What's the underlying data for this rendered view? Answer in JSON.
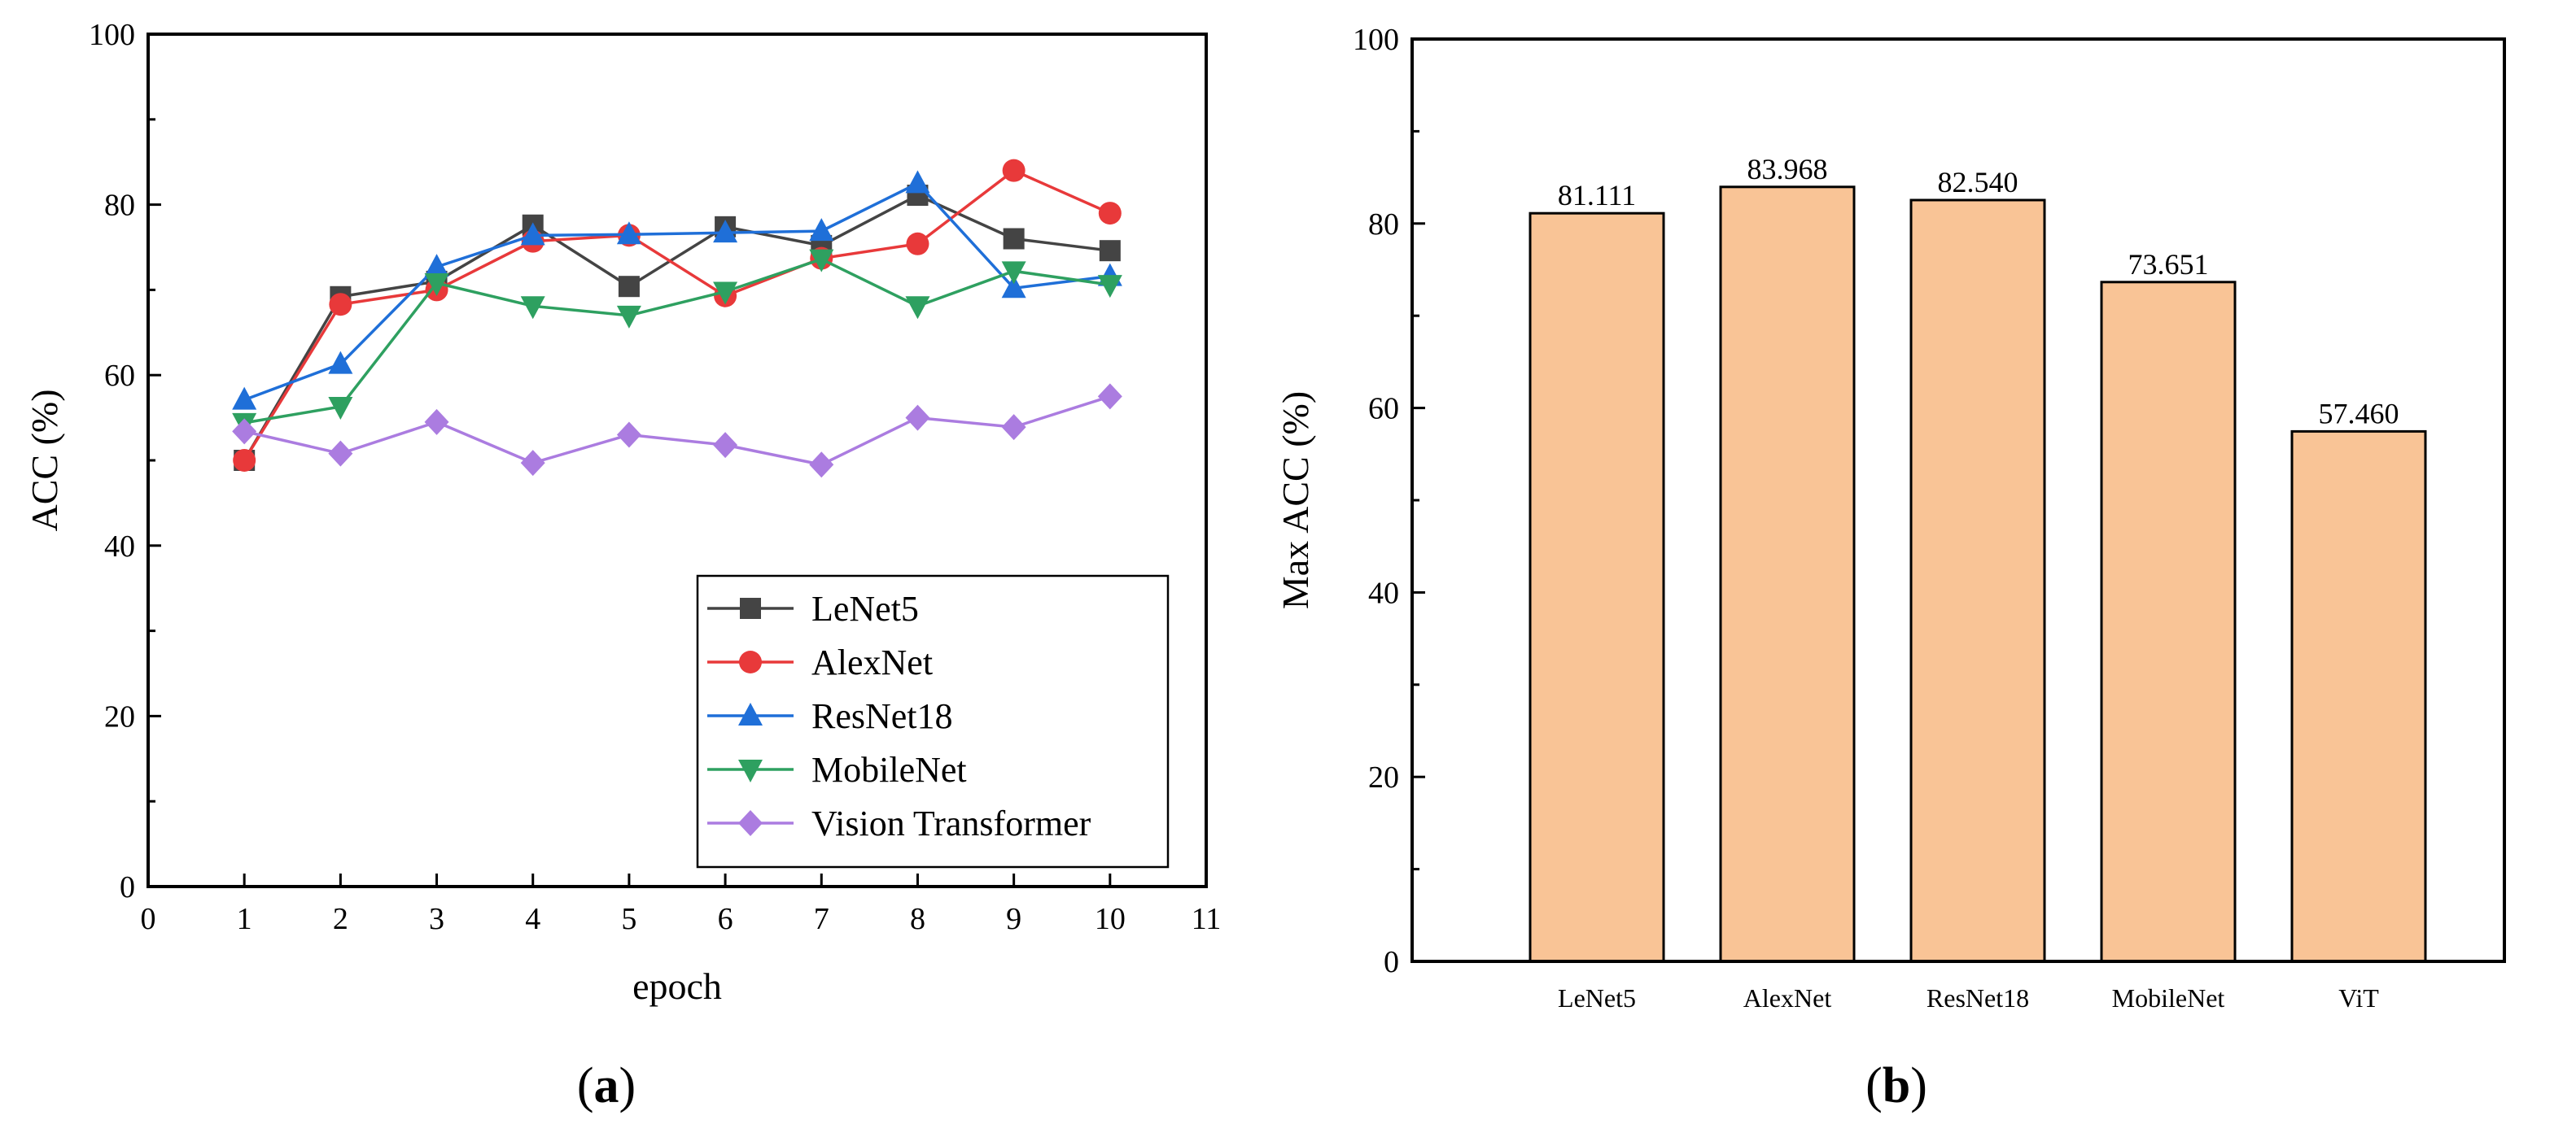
{
  "chart_data": [
    {
      "type": "line",
      "panel_label": {
        "open": "(",
        "letter": "a",
        "close": ")"
      },
      "xlabel": "epoch",
      "ylabel": "ACC (%)",
      "xlim": [
        0,
        11
      ],
      "ylim": [
        0,
        100
      ],
      "xticks": [
        0,
        1,
        2,
        3,
        4,
        5,
        6,
        7,
        8,
        9,
        10,
        11
      ],
      "yticks": [
        0,
        20,
        40,
        60,
        80,
        100
      ],
      "x": [
        1,
        2,
        3,
        4,
        5,
        6,
        7,
        8,
        9,
        10
      ],
      "legend_position": "bottom-right",
      "series": [
        {
          "name": "LeNet5",
          "marker": "square",
          "color": "#444444",
          "values": [
            50.0,
            69.2,
            71.0,
            77.6,
            70.4,
            77.4,
            75.2,
            81.1,
            76.0,
            74.6
          ]
        },
        {
          "name": "AlexNet",
          "marker": "circle",
          "color": "#e8393a",
          "values": [
            50.0,
            68.3,
            70.0,
            75.7,
            76.4,
            69.3,
            73.7,
            75.4,
            84.0,
            79.0
          ]
        },
        {
          "name": "ResNet18",
          "marker": "triangle-up",
          "color": "#1f6fd8",
          "values": [
            57.1,
            61.3,
            72.7,
            76.4,
            76.5,
            76.7,
            76.9,
            82.5,
            70.2,
            71.6
          ]
        },
        {
          "name": "MobileNet",
          "marker": "triangle-down",
          "color": "#2ea060",
          "values": [
            54.4,
            56.3,
            70.8,
            68.1,
            67.0,
            69.8,
            73.6,
            68.1,
            72.2,
            70.6
          ]
        },
        {
          "name": "Vision Transformer",
          "marker": "diamond",
          "color": "#ab7ce0",
          "values": [
            53.4,
            50.8,
            54.5,
            49.7,
            53.0,
            51.8,
            49.5,
            55.0,
            53.9,
            57.5
          ]
        }
      ]
    },
    {
      "type": "bar",
      "panel_label": {
        "open": "(",
        "letter": "b",
        "close": ")"
      },
      "xlabel": "",
      "ylabel": "Max ACC (%)",
      "ylim": [
        0,
        100
      ],
      "yticks": [
        0,
        20,
        40,
        60,
        80,
        100
      ],
      "categories": [
        "LeNet5",
        "AlexNet",
        "ResNet18",
        "MobileNet",
        "ViT"
      ],
      "values": [
        81.111,
        83.968,
        82.54,
        73.651,
        57.46
      ],
      "value_labels": [
        "81.111",
        "83.968",
        "82.540",
        "73.651",
        "57.460"
      ],
      "bar_color": "#f9c496"
    }
  ]
}
